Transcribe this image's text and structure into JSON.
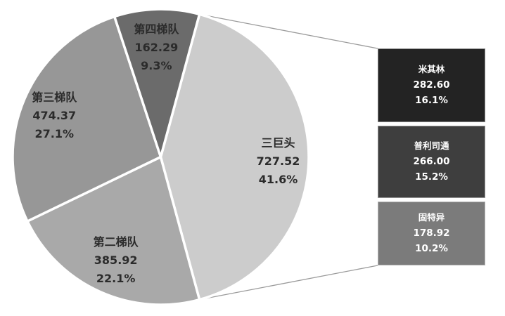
{
  "chart_data": {
    "type": "pie-of-pie",
    "background_color": "#ffffff",
    "slice_border_color": "#ffffff",
    "leader_line_color": "#9a9a9a",
    "pie": {
      "label_text_color": "#2b2b2b",
      "slices": [
        {
          "label": "三巨头",
          "value": "727.52",
          "pct": "41.6%",
          "value_num": 727.52,
          "color": "#cccccc"
        },
        {
          "label": "第二梯队",
          "value": "385.92",
          "pct": "22.1%",
          "value_num": 385.92,
          "color": "#a9a9a9"
        },
        {
          "label": "第三梯队",
          "value": "474.37",
          "pct": "27.1%",
          "value_num": 474.37,
          "color": "#979797"
        },
        {
          "label": "第四梯队",
          "value": "162.29",
          "pct": "9.3%",
          "value_num": 162.29,
          "color": "#6b6b6b"
        }
      ]
    },
    "breakdown_bar": {
      "expanded_slice": "三巨头",
      "text_color": "#ffffff",
      "segments": [
        {
          "label": "米其林",
          "value": "282.60",
          "pct": "16.1%",
          "value_num": 282.6,
          "color": "#232323"
        },
        {
          "label": "普利司通",
          "value": "266.00",
          "pct": "15.2%",
          "value_num": 266.0,
          "color": "#3e3e3e"
        },
        {
          "label": "固特异",
          "value": "178.92",
          "pct": "10.2%",
          "value_num": 178.92,
          "color": "#7b7b7b"
        }
      ]
    }
  }
}
